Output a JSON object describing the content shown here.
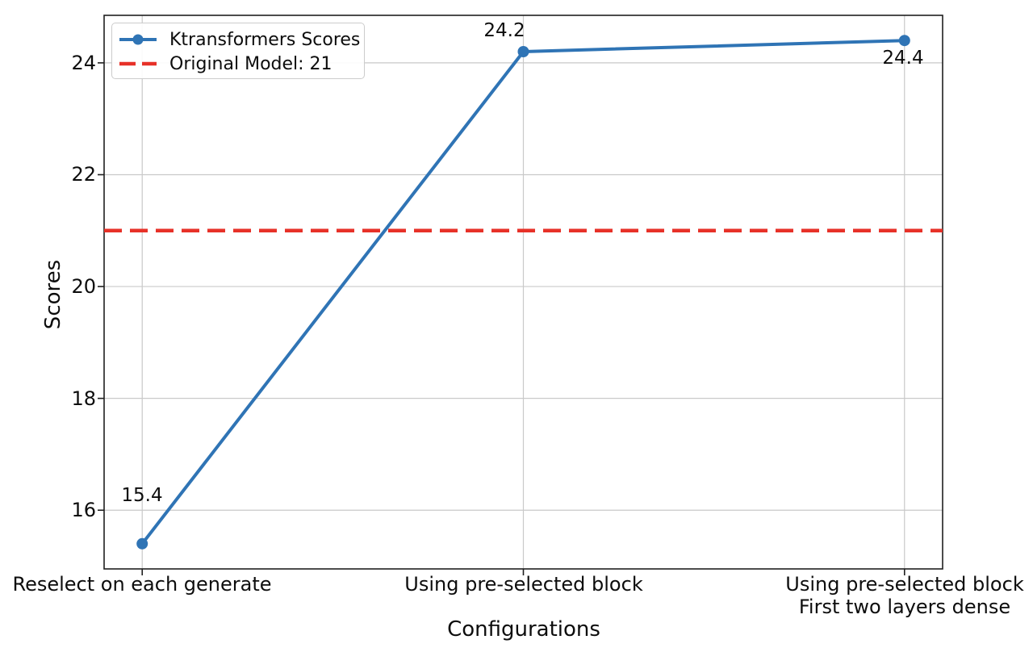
{
  "chart_data": {
    "type": "line",
    "title": "",
    "xlabel": "Configurations",
    "ylabel": "Scores",
    "categories": [
      "Reselect on each generate",
      "Using pre-selected block",
      "Using pre-selected block\nFirst two layers dense"
    ],
    "series": [
      {
        "name": "Ktransformers Scores",
        "values": [
          15.4,
          24.2,
          24.4
        ],
        "color": "#2f74b5",
        "marker": "circle",
        "style": "solid"
      }
    ],
    "reference_line": {
      "label": "Original Model: 21",
      "value": 21,
      "color": "#e73128",
      "style": "dashed"
    },
    "value_labels": [
      "15.4",
      "24.2",
      "24.4"
    ],
    "yticks": [
      16,
      18,
      20,
      22,
      24
    ],
    "ylim": [
      14.95,
      24.85
    ],
    "grid": true,
    "legend_position": "upper-left"
  },
  "colors": {
    "grid": "#c9c9c9",
    "spine": "#1f1f1f",
    "tick": "#1f1f1f",
    "text": "#0d0d0d",
    "background": "#ffffff",
    "legend_border": "#cccccc"
  }
}
